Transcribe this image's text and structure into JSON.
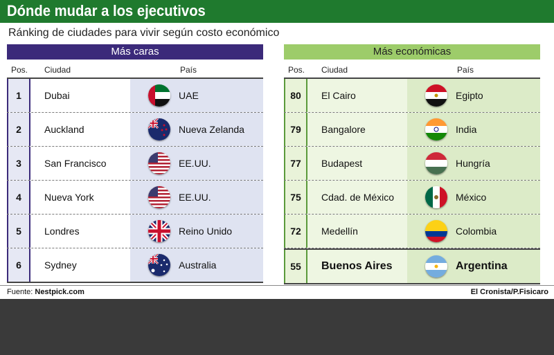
{
  "title": "Dónde mudar a los ejecutivos",
  "subtitle": "Ránking de ciudades para vivir según costo económico",
  "left": {
    "header": "Más caras",
    "col_pos": "Pos.",
    "col_city": "Ciudad",
    "col_country": "País",
    "rows": [
      {
        "pos": "1",
        "city": "Dubai",
        "country": "UAE",
        "flag": "uae-flag"
      },
      {
        "pos": "2",
        "city": "Auckland",
        "country": "Nueva Zelanda",
        "flag": "new-zealand-flag"
      },
      {
        "pos": "3",
        "city": "San Francisco",
        "country": "EE.UU.",
        "flag": "usa-flag"
      },
      {
        "pos": "4",
        "city": "Nueva York",
        "country": "EE.UU.",
        "flag": "usa-flag"
      },
      {
        "pos": "5",
        "city": "Londres",
        "country": "Reino Unido",
        "flag": "uk-flag"
      },
      {
        "pos": "6",
        "city": "Sydney",
        "country": "Australia",
        "flag": "australia-flag"
      }
    ]
  },
  "right": {
    "header": "Más económicas",
    "col_pos": "Pos.",
    "col_city": "Ciudad",
    "col_country": "País",
    "rows": [
      {
        "pos": "80",
        "city": "El Cairo",
        "country": "Egipto",
        "flag": "egypt-flag"
      },
      {
        "pos": "79",
        "city": "Bangalore",
        "country": "India",
        "flag": "india-flag"
      },
      {
        "pos": "77",
        "city": "Budapest",
        "country": "Hungría",
        "flag": "hungary-flag"
      },
      {
        "pos": "75",
        "city": "Cdad. de México",
        "country": "México",
        "flag": "mexico-flag"
      },
      {
        "pos": "72",
        "city": "Medellín",
        "country": "Colombia",
        "flag": "colombia-flag"
      },
      {
        "pos": "55",
        "city": "Buenos Aires",
        "country": "Argentina",
        "flag": "argentina-flag"
      }
    ]
  },
  "footer": {
    "source_label": "Fuente:",
    "source": "Nestpick.com",
    "credit": "El Cronista/P.Fisicaro"
  },
  "colors": {
    "title_bar": "#1f7a2e",
    "expensive_header": "#3b2a7a",
    "cheap_header": "#9dcc6a"
  }
}
